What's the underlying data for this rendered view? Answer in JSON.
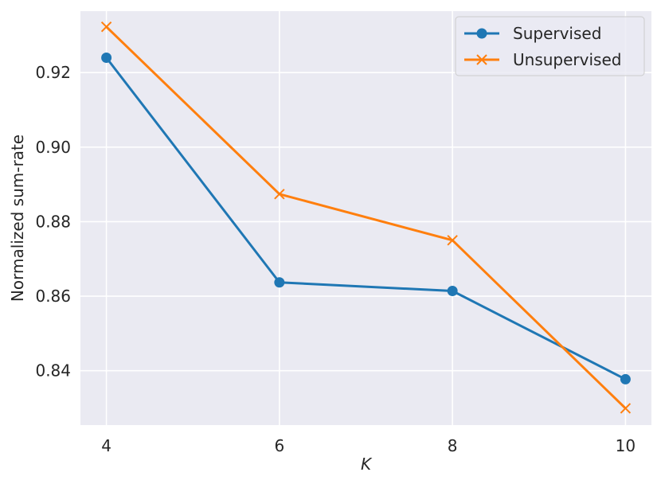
{
  "chart_data": {
    "type": "line",
    "title": "",
    "xlabel": "K",
    "ylabel": "Normalized sum-rate",
    "x": [
      4,
      6,
      8,
      10
    ],
    "xticks": [
      4,
      6,
      8,
      10
    ],
    "xtick_labels": [
      "4",
      "6",
      "8",
      "10"
    ],
    "xlim": [
      3.7,
      10.3
    ],
    "yticks": [
      0.84,
      0.86,
      0.88,
      0.9,
      0.92
    ],
    "ytick_labels": [
      "0.84",
      "0.86",
      "0.88",
      "0.90",
      "0.92"
    ],
    "ylim": [
      0.8254,
      0.9365
    ],
    "grid": true,
    "legend_position": "top-right",
    "series": [
      {
        "name": "Supervised",
        "marker": "circle",
        "color": "#1f77b4",
        "values": [
          0.924,
          0.8637,
          0.8614,
          0.8377
        ]
      },
      {
        "name": "Unsupervised",
        "marker": "x",
        "color": "#ff7f0e",
        "values": [
          0.9323,
          0.8874,
          0.875,
          0.8299
        ]
      }
    ],
    "background_color": "#eaeaf2",
    "grid_color": "#ffffff"
  }
}
